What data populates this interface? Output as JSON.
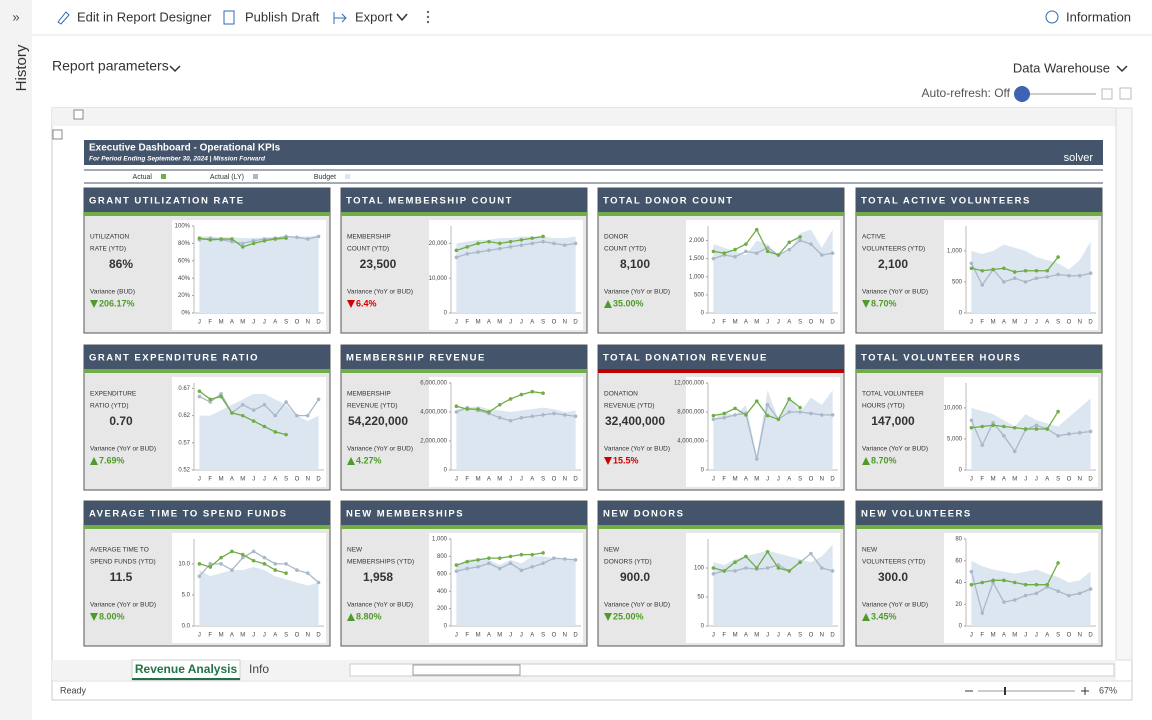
{
  "toolbar": {
    "items": [
      "Edit in Report Designer",
      "Publish Draft",
      "Export"
    ],
    "info": "Information"
  },
  "sidebar": {
    "label": "History"
  },
  "params": {
    "label": "Report parameters",
    "source": "Data Warehouse",
    "refresh": "Auto-refresh: Off"
  },
  "dashboard": {
    "title": "Executive Dashboard - Operational KPIs",
    "subtitle": "For Period Ending September 30, 2024 | Mission Forward",
    "logo": "solver",
    "legend": [
      {
        "name": "Actual",
        "color": "#70ad47"
      },
      {
        "name": "Actual (LY)",
        "color": "#a9b8c8"
      },
      {
        "name": "Budget",
        "color": "#dce6f1"
      }
    ],
    "months": [
      "J",
      "F",
      "M",
      "A",
      "M",
      "J",
      "J",
      "A",
      "S",
      "O",
      "N",
      "D"
    ],
    "kpis": [
      {
        "title": "GRANT UTILIZATION RATE",
        "label": [
          "UTILIZATION",
          "RATE (YTD)"
        ],
        "value": "86%",
        "variance_label": "Variance (BUD)",
        "variance": "206.17%",
        "direction": "down",
        "variance_color": "#4e9a2a",
        "status_color": "#70ad47",
        "ylim": [
          0,
          100
        ],
        "yticks": [
          {
            "value": 0,
            "label": "0%"
          },
          {
            "value": 20,
            "label": "20%"
          },
          {
            "value": 40,
            "label": "40%"
          },
          {
            "value": 60,
            "label": "60%"
          },
          {
            "value": 80,
            "label": "80%"
          },
          {
            "value": 100,
            "label": "100%"
          }
        ],
        "actual": [
          86,
          84,
          85,
          85,
          76,
          80,
          83,
          85,
          86
        ],
        "actual_ly": [
          84,
          86,
          84,
          82,
          80,
          83,
          85,
          86,
          88,
          87,
          85,
          88
        ],
        "budget": [
          88,
          88,
          87,
          87,
          86,
          86,
          87,
          87,
          88,
          88,
          88,
          89
        ]
      },
      {
        "title": "TOTAL MEMBERSHIP COUNT",
        "label": [
          "MEMBERSHIP",
          "COUNT (YTD)"
        ],
        "value": "23,500",
        "variance_label": "Variance (YoY or BUD)",
        "variance": "6.4%",
        "direction": "down",
        "variance_color": "#d00000",
        "status_color": "#70ad47",
        "ylim": [
          0,
          25000
        ],
        "yticks": [
          0,
          {
            "value": 10000,
            "label": "10,000"
          },
          {
            "value": 20000,
            "label": "20,000"
          }
        ],
        "actual": [
          18000,
          19000,
          20000,
          20500,
          20000,
          20500,
          21000,
          21500,
          22000
        ],
        "actual_ly": [
          16000,
          17000,
          17500,
          18000,
          18500,
          19000,
          19500,
          20000,
          20500,
          20000,
          19500,
          20000
        ],
        "budget": [
          20000,
          20500,
          21000,
          21000,
          21500,
          21500,
          22000,
          22000,
          22000,
          21500,
          21500,
          22000
        ]
      },
      {
        "title": "TOTAL DONOR COUNT",
        "label": [
          "DONOR",
          "COUNT (YTD)"
        ],
        "value": "8,100",
        "variance_label": "Variance (YoY or BUD)",
        "variance": "35.00%",
        "direction": "up",
        "variance_color": "#4e9a2a",
        "status_color": "#70ad47",
        "ylim": [
          0,
          2400
        ],
        "yticks": [
          0,
          500,
          {
            "value": 1000,
            "label": "1,000"
          },
          {
            "value": 1500,
            "label": "1,500"
          },
          {
            "value": 2000,
            "label": "2,000"
          }
        ],
        "actual": [
          1700,
          1650,
          1750,
          1900,
          2300,
          1700,
          1600,
          1950,
          2100
        ],
        "actual_ly": [
          1500,
          1600,
          1550,
          1700,
          1650,
          1800,
          1600,
          1750,
          2000,
          1900,
          1600,
          1650
        ],
        "budget": [
          1900,
          1800,
          1700,
          1600,
          2000,
          1900,
          1600,
          1700,
          2200,
          2300,
          1800,
          2300
        ]
      },
      {
        "title": "TOTAL ACTIVE VOLUNTEERS",
        "label": [
          "ACTIVE",
          "VOLUNTEERS (YTD)"
        ],
        "value": "2,100",
        "variance_label": "Variance (YoY or BUD)",
        "variance": "8.70%",
        "direction": "down",
        "variance_color": "#4e9a2a",
        "status_color": "#70ad47",
        "ylim": [
          0,
          1400
        ],
        "yticks": [
          0,
          500,
          {
            "value": 1000,
            "label": "1,000"
          }
        ],
        "actual": [
          720,
          680,
          700,
          720,
          660,
          680,
          680,
          680,
          900
        ],
        "actual_ly": [
          800,
          450,
          700,
          500,
          560,
          500,
          560,
          580,
          620,
          600,
          600,
          640
        ],
        "budget": [
          1000,
          950,
          1000,
          1100,
          1050,
          1000,
          900,
          850,
          800,
          700,
          850,
          1150
        ]
      },
      {
        "title": "GRANT EXPENDITURE RATIO",
        "label": [
          "EXPENDITURE",
          "RATIO (YTD)"
        ],
        "value": "0.70",
        "variance_label": "Variance (YoY or BUD)",
        "variance": "7.69%",
        "direction": "up",
        "variance_color": "#4e9a2a",
        "status_color": "#70ad47",
        "ylim": [
          0.52,
          0.68
        ],
        "yticks": [
          0.52,
          0.57,
          0.62,
          0.67
        ],
        "actual": [
          0.665,
          0.65,
          0.655,
          0.625,
          0.62,
          0.61,
          0.6,
          0.59,
          0.585
        ],
        "actual_ly": [
          0.655,
          0.645,
          0.66,
          0.625,
          0.64,
          0.63,
          0.64,
          0.62,
          0.645,
          0.62,
          0.62,
          0.65
        ],
        "budget": [
          0.62,
          0.62,
          0.63,
          0.64,
          0.65,
          0.66,
          0.66,
          0.65,
          0.64,
          0.62,
          0.61,
          0.62
        ]
      },
      {
        "title": "MEMBERSHIP REVENUE",
        "label": [
          "MEMBERSHIP",
          "REVENUE (YTD)"
        ],
        "value": "54,220,000",
        "variance_label": "Variance (YoY or BUD)",
        "variance": "4.27%",
        "direction": "up",
        "variance_color": "#4e9a2a",
        "status_color": "#70ad47",
        "ylim": [
          0,
          6000000
        ],
        "yticks": [
          0,
          {
            "value": 2000000,
            "label": "2,000,000"
          },
          {
            "value": 4000000,
            "label": "4,000,000"
          },
          {
            "value": 6000000,
            "label": "6,000,000"
          }
        ],
        "actual": [
          4400000,
          4200000,
          4200000,
          4000000,
          4500000,
          4900000,
          5200000,
          5400000,
          5300000
        ],
        "actual_ly": [
          4000000,
          4300000,
          4100000,
          3900000,
          3600000,
          3400000,
          3600000,
          3700000,
          3800000,
          3900000,
          3800000,
          3700000
        ],
        "budget": [
          4200000,
          4300000,
          4400000,
          4200000,
          4100000,
          4000000,
          4100000,
          4200000,
          4300000,
          4200000,
          4000000,
          4100000
        ]
      },
      {
        "title": "TOTAL DONATION REVENUE",
        "label": [
          "DONATION",
          "REVENUE (YTD)"
        ],
        "value": "32,400,000",
        "variance_label": "Variance (YoY or BUD)",
        "variance": "15.5%",
        "direction": "down",
        "variance_color": "#d00000",
        "status_color": "#c00000",
        "ylim": [
          0,
          12000000
        ],
        "yticks": [
          0,
          {
            "value": 4000000,
            "label": "4,000,000"
          },
          {
            "value": 8000000,
            "label": "8,000,000"
          },
          {
            "value": 12000000,
            "label": "12,000,000"
          }
        ],
        "actual": [
          7500000,
          7800000,
          8500000,
          7600000,
          9500000,
          7500000,
          7000000,
          9800000,
          8600000
        ],
        "actual_ly": [
          7000000,
          7200000,
          7600000,
          7800000,
          1500000,
          9000000,
          7000000,
          8000000,
          8000000,
          7800000,
          7600000,
          7600000
        ],
        "budget": [
          7000000,
          8000000,
          7500000,
          9000000,
          2000000,
          11000000,
          7000000,
          10000000,
          8000000,
          10000000,
          9000000,
          11000000
        ]
      },
      {
        "title": "TOTAL VOLUNTEER HOURS",
        "label": [
          "TOTAL VOLUNTEER",
          "HOURS (YTD)"
        ],
        "value": "147,000",
        "variance_label": "Variance (YoY or BUD)",
        "variance": "8.70%",
        "direction": "up",
        "variance_color": "#4e9a2a",
        "status_color": "#70ad47",
        "ylim": [
          0,
          14000
        ],
        "yticks": [
          0,
          {
            "value": 5000,
            "label": "5,000"
          },
          {
            "value": 10000,
            "label": "10,000"
          }
        ],
        "actual": [
          6800,
          7000,
          7200,
          7000,
          6800,
          6600,
          6600,
          6600,
          9400
        ],
        "actual_ly": [
          8000,
          4000,
          7600,
          5500,
          3000,
          6500,
          7200,
          6600,
          5500,
          5800,
          6000,
          6200
        ],
        "budget": [
          10000,
          9500,
          9000,
          8000,
          7000,
          9000,
          8000,
          7500,
          7000,
          8500,
          10000,
          11500
        ]
      },
      {
        "title": "AVERAGE TIME TO SPEND FUNDS",
        "label": [
          "AVERAGE TIME TO",
          "SPEND FUNDS (YTD)"
        ],
        "value": "11.5",
        "variance_label": "Variance (YoY or BUD)",
        "variance": "8.00%",
        "direction": "down",
        "variance_color": "#4e9a2a",
        "status_color": "#70ad47",
        "ylim": [
          0,
          14
        ],
        "yticks": [
          {
            "value": 0,
            "label": "0.0"
          },
          {
            "value": 5,
            "label": "5.0"
          },
          {
            "value": 10,
            "label": "10.0"
          }
        ],
        "actual": [
          10,
          9.5,
          11,
          12,
          11.5,
          10.5,
          10,
          9,
          8.5
        ],
        "actual_ly": [
          8,
          10,
          10,
          9,
          11,
          12,
          11,
          10,
          10,
          9,
          8.5,
          7
        ],
        "budget": [
          9,
          8,
          8.5,
          9,
          9,
          9.5,
          9,
          8,
          7.5,
          7,
          6.5,
          7
        ]
      },
      {
        "title": "NEW MEMBERSHIPS",
        "label": [
          "NEW",
          "MEMBERSHIPS (YTD)"
        ],
        "value": "1,958",
        "variance_label": "Variance (YoY or BUD)",
        "variance": "8.80%",
        "direction": "up",
        "variance_color": "#4e9a2a",
        "status_color": "#70ad47",
        "ylim": [
          0,
          1000
        ],
        "yticks": [
          0,
          200,
          400,
          600,
          800,
          {
            "value": 1000,
            "label": "1,000"
          }
        ],
        "actual": [
          700,
          740,
          760,
          780,
          780,
          800,
          820,
          820,
          840
        ],
        "actual_ly": [
          630,
          660,
          680,
          720,
          660,
          720,
          640,
          680,
          720,
          780,
          770,
          760
        ],
        "budget": [
          700,
          760,
          780,
          760,
          700,
          760,
          720,
          800,
          800,
          780,
          760,
          780
        ]
      },
      {
        "title": "NEW DONORS",
        "label": [
          "NEW",
          "DONORS (YTD)"
        ],
        "value": "900.0",
        "variance_label": "Variance (YoY or BUD)",
        "variance": "25.00%",
        "direction": "down",
        "variance_color": "#4e9a2a",
        "status_color": "#70ad47",
        "ylim": [
          0,
          150
        ],
        "yticks": [
          0,
          50,
          100
        ],
        "actual": [
          100,
          95,
          110,
          120,
          100,
          128,
          100,
          95,
          110
        ],
        "actual_ly": [
          90,
          95,
          95,
          100,
          98,
          100,
          105,
          95,
          110,
          125,
          100,
          95
        ],
        "budget": [
          110,
          105,
          115,
          120,
          125,
          130,
          125,
          120,
          115,
          110,
          120,
          140
        ]
      },
      {
        "title": "NEW VOLUNTEERS",
        "label": [
          "NEW",
          "VOLUNTEERS (YTD)"
        ],
        "value": "300.0",
        "variance_label": "Variance (YoY or BUD)",
        "variance": "3.45%",
        "direction": "up",
        "variance_color": "#4e9a2a",
        "status_color": "#70ad47",
        "ylim": [
          0,
          80
        ],
        "yticks": [
          0,
          20,
          40,
          60,
          80
        ],
        "actual": [
          38,
          40,
          42,
          42,
          40,
          38,
          38,
          38,
          58
        ],
        "actual_ly": [
          50,
          12,
          40,
          22,
          24,
          28,
          30,
          36,
          32,
          28,
          30,
          34
        ],
        "budget": [
          60,
          55,
          52,
          50,
          48,
          50,
          52,
          48,
          45,
          40,
          42,
          50
        ]
      }
    ]
  },
  "sheet": {
    "tabs": [
      "Revenue Analysis",
      "Info"
    ],
    "status": "Ready",
    "zoom": "67%"
  }
}
